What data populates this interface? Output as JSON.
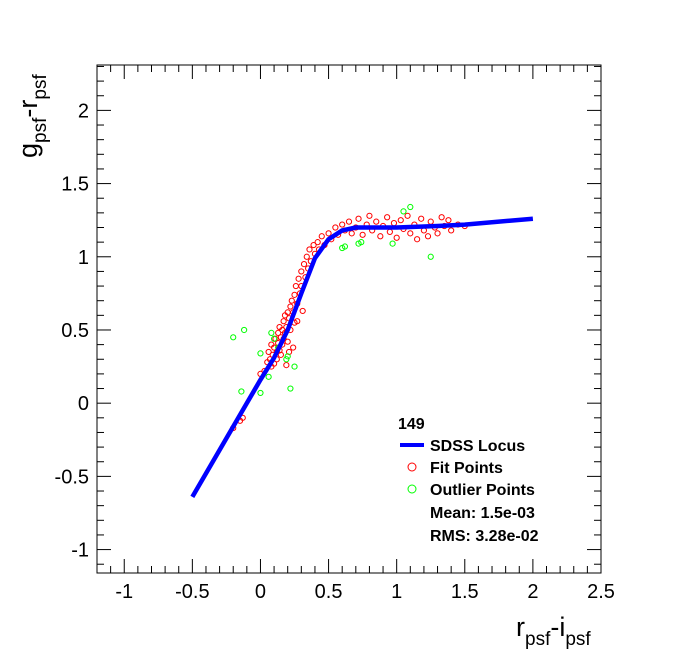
{
  "chart_data": {
    "type": "scatter",
    "title": "",
    "xlabel": {
      "main": "r",
      "sub1": "psf",
      "mid": "-i",
      "sub2": "psf"
    },
    "ylabel": {
      "main": "g",
      "sub1": "psf",
      "mid": "-r",
      "sub2": "psf"
    },
    "xlim": [
      -1.2,
      2.5
    ],
    "ylim": [
      -1.16,
      2.31
    ],
    "xticks": [
      -1,
      -0.5,
      0,
      0.5,
      1,
      1.5,
      2,
      2.5
    ],
    "xtick_labels": [
      "-1",
      "-0.5",
      "0",
      "0.5",
      "1",
      "1.5",
      "2",
      "2.5"
    ],
    "yticks": [
      -1,
      -0.5,
      0,
      0.5,
      1,
      1.5,
      2
    ],
    "ytick_labels": [
      "-1",
      "-0.5",
      "0",
      "0.5",
      "1",
      "1.5",
      "2"
    ],
    "grid": false,
    "legend": {
      "placement": "bottom-right",
      "header": "149",
      "entries": [
        "SDSS Locus",
        "Fit Points",
        "Outlier Points"
      ],
      "mean": "Mean: 1.5e-03",
      "rms": "RMS: 3.28e-02"
    },
    "colors": {
      "locus": "#0000ff",
      "fit": "#ff0000",
      "outlier": "#00ff00"
    },
    "series": [
      {
        "name": "SDSS Locus",
        "type": "line",
        "points": [
          [
            -0.5,
            -0.64
          ],
          [
            -0.3,
            -0.32
          ],
          [
            -0.1,
            0.0
          ],
          [
            0,
            0.16
          ],
          [
            0.1,
            0.31
          ],
          [
            0.2,
            0.5
          ],
          [
            0.3,
            0.75
          ],
          [
            0.4,
            0.99
          ],
          [
            0.5,
            1.12
          ],
          [
            0.6,
            1.18
          ],
          [
            0.7,
            1.2
          ],
          [
            1.0,
            1.2
          ],
          [
            1.3,
            1.21
          ],
          [
            1.5,
            1.22
          ],
          [
            2.0,
            1.26
          ]
        ]
      },
      {
        "name": "Fit Points",
        "type": "scatter",
        "points": [
          [
            -0.2,
            -0.17
          ],
          [
            -0.13,
            -0.1
          ],
          [
            -0.15,
            -0.12
          ],
          [
            0.0,
            0.2
          ],
          [
            0.03,
            0.22
          ],
          [
            0.05,
            0.28
          ],
          [
            0.06,
            0.35
          ],
          [
            0.07,
            0.3
          ],
          [
            0.08,
            0.4
          ],
          [
            0.08,
            0.25
          ],
          [
            0.09,
            0.33
          ],
          [
            0.1,
            0.38
          ],
          [
            0.1,
            0.27
          ],
          [
            0.11,
            0.44
          ],
          [
            0.12,
            0.35
          ],
          [
            0.12,
            0.3
          ],
          [
            0.13,
            0.48
          ],
          [
            0.13,
            0.41
          ],
          [
            0.14,
            0.36
          ],
          [
            0.14,
            0.52
          ],
          [
            0.15,
            0.45
          ],
          [
            0.15,
            0.33
          ],
          [
            0.16,
            0.5
          ],
          [
            0.16,
            0.4
          ],
          [
            0.17,
            0.56
          ],
          [
            0.17,
            0.44
          ],
          [
            0.18,
            0.6
          ],
          [
            0.18,
            0.48
          ],
          [
            0.19,
            0.52
          ],
          [
            0.2,
            0.62
          ],
          [
            0.2,
            0.42
          ],
          [
            0.21,
            0.58
          ],
          [
            0.22,
            0.66
          ],
          [
            0.22,
            0.5
          ],
          [
            0.23,
            0.7
          ],
          [
            0.24,
            0.62
          ],
          [
            0.25,
            0.74
          ],
          [
            0.25,
            0.55
          ],
          [
            0.26,
            0.8
          ],
          [
            0.27,
            0.68
          ],
          [
            0.28,
            0.85
          ],
          [
            0.29,
            0.75
          ],
          [
            0.3,
            0.9
          ],
          [
            0.3,
            0.8
          ],
          [
            0.32,
            0.95
          ],
          [
            0.33,
            0.86
          ],
          [
            0.34,
            1.0
          ],
          [
            0.35,
            0.92
          ],
          [
            0.36,
            1.05
          ],
          [
            0.37,
            0.97
          ],
          [
            0.39,
            1.08
          ],
          [
            0.4,
            1.02
          ],
          [
            0.42,
            1.1
          ],
          [
            0.43,
            1.05
          ],
          [
            0.45,
            1.14
          ],
          [
            0.47,
            1.08
          ],
          [
            0.5,
            1.16
          ],
          [
            0.52,
            1.12
          ],
          [
            0.55,
            1.2
          ],
          [
            0.57,
            1.15
          ],
          [
            0.6,
            1.22
          ],
          [
            0.62,
            1.18
          ],
          [
            0.65,
            1.24
          ],
          [
            0.67,
            1.16
          ],
          [
            0.7,
            1.2
          ],
          [
            0.72,
            1.26
          ],
          [
            0.75,
            1.15
          ],
          [
            0.78,
            1.22
          ],
          [
            0.8,
            1.28
          ],
          [
            0.82,
            1.18
          ],
          [
            0.85,
            1.24
          ],
          [
            0.88,
            1.14
          ],
          [
            0.9,
            1.21
          ],
          [
            0.93,
            1.27
          ],
          [
            0.95,
            1.17
          ],
          [
            0.98,
            1.23
          ],
          [
            1.0,
            1.13
          ],
          [
            1.03,
            1.25
          ],
          [
            1.05,
            1.19
          ],
          [
            1.08,
            1.28
          ],
          [
            1.1,
            1.16
          ],
          [
            1.13,
            1.22
          ],
          [
            1.15,
            1.12
          ],
          [
            1.18,
            1.26
          ],
          [
            1.2,
            1.18
          ],
          [
            1.23,
            1.14
          ],
          [
            1.25,
            1.24
          ],
          [
            1.28,
            1.2
          ],
          [
            1.3,
            1.16
          ],
          [
            1.33,
            1.27
          ],
          [
            1.35,
            1.21
          ],
          [
            1.38,
            1.25
          ],
          [
            1.4,
            1.18
          ],
          [
            1.45,
            1.22
          ],
          [
            1.5,
            1.21
          ],
          [
            0.21,
            0.35
          ],
          [
            0.24,
            0.38
          ],
          [
            0.19,
            0.26
          ],
          [
            0.27,
            0.56
          ],
          [
            0.31,
            0.63
          ]
        ]
      },
      {
        "name": "Outlier Points",
        "type": "scatter",
        "points": [
          [
            -0.2,
            0.45
          ],
          [
            -0.12,
            0.5
          ],
          [
            -0.14,
            0.08
          ],
          [
            0.0,
            0.07
          ],
          [
            0.0,
            0.34
          ],
          [
            0.06,
            0.18
          ],
          [
            0.08,
            0.48
          ],
          [
            0.1,
            0.44
          ],
          [
            0.13,
            0.38
          ],
          [
            0.19,
            0.3
          ],
          [
            0.2,
            0.32
          ],
          [
            0.22,
            0.1
          ],
          [
            0.25,
            0.25
          ],
          [
            0.6,
            1.06
          ],
          [
            0.62,
            1.07
          ],
          [
            0.72,
            1.09
          ],
          [
            0.74,
            1.1
          ],
          [
            0.97,
            1.09
          ],
          [
            1.05,
            1.31
          ],
          [
            1.1,
            1.34
          ],
          [
            1.25,
            1.0
          ]
        ]
      }
    ]
  }
}
